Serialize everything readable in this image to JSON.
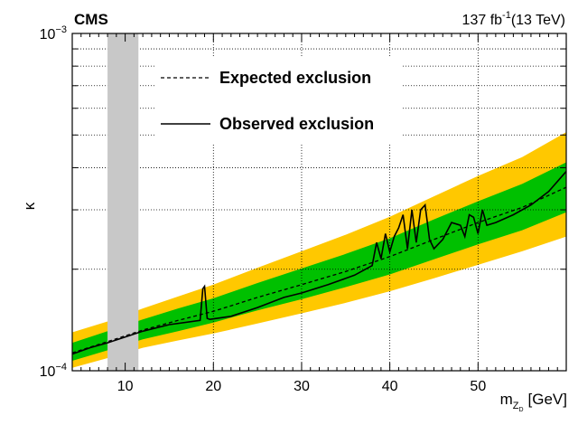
{
  "chart_data": {
    "type": "line",
    "title_left": "CMS",
    "title_right": "137 fb",
    "title_right_sup": "-1",
    "title_right_rest": "(13 TeV)",
    "xlabel": "m",
    "xlabel_sub": "Z",
    "xlabel_subsub": "D",
    "xlabel_unit": "[GeV]",
    "ylabel": "κ",
    "xlim": [
      4,
      60
    ],
    "ylim": [
      0.0001,
      0.001
    ],
    "yscale": "log",
    "grid": true,
    "legend_placement": "top-left",
    "x_ticks": [
      {
        "value": 10,
        "label": "10"
      },
      {
        "value": 20,
        "label": "20"
      },
      {
        "value": 30,
        "label": "30"
      },
      {
        "value": 40,
        "label": "40"
      },
      {
        "value": 50,
        "label": "50"
      }
    ],
    "y_ticks": [
      {
        "value": 0.0001,
        "base": "10",
        "exp": "−4"
      },
      {
        "value": 0.001,
        "base": "10",
        "exp": "−3"
      }
    ],
    "excluded_band": {
      "x": [
        8,
        11.5
      ],
      "color": "#c8c8c8"
    },
    "colors": {
      "band_2sigma": "#ffc800",
      "band_1sigma": "#00c000",
      "line": "#000000"
    },
    "series": [
      {
        "name": "Expected exclusion",
        "style": "dashed",
        "x": [
          4,
          8,
          12,
          16,
          20,
          25,
          30,
          35,
          40,
          45,
          50,
          55,
          60
        ],
        "y": [
          0.000113,
          0.000122,
          0.000132,
          0.000141,
          0.00015,
          0.000165,
          0.00018,
          0.000197,
          0.000218,
          0.000245,
          0.000275,
          0.000305,
          0.00035
        ]
      },
      {
        "name": "Observed exclusion",
        "style": "solid",
        "x": [
          4,
          6,
          8,
          12,
          15,
          18.5,
          18.8,
          19.0,
          19.3,
          19.6,
          22,
          25,
          28,
          30,
          33,
          36,
          38,
          38.5,
          39,
          39.5,
          40,
          40.5,
          41,
          41.5,
          42,
          42.5,
          43,
          43.5,
          44,
          44.5,
          45,
          46,
          47,
          48,
          48.5,
          49,
          49.5,
          50,
          50.5,
          51,
          52,
          54,
          56,
          58,
          60
        ],
        "y": [
          0.000112,
          0.000117,
          0.000121,
          0.000131,
          0.000137,
          0.000141,
          0.000175,
          0.000178,
          0.000143,
          0.000142,
          0.000145,
          0.000154,
          0.000165,
          0.00017,
          0.00018,
          0.000192,
          0.000205,
          0.00024,
          0.000215,
          0.000255,
          0.000225,
          0.00025,
          0.000265,
          0.00029,
          0.00023,
          0.0003,
          0.00024,
          0.0003,
          0.00031,
          0.000245,
          0.00023,
          0.000245,
          0.000275,
          0.00027,
          0.00025,
          0.00029,
          0.000285,
          0.000255,
          0.0003,
          0.00027,
          0.000275,
          0.00029,
          0.00031,
          0.00034,
          0.00039
        ]
      }
    ],
    "bands": {
      "x": [
        4,
        8,
        12,
        16,
        20,
        25,
        30,
        35,
        40,
        45,
        50,
        55,
        60
      ],
      "sigma1_lo": [
        0.000107,
        0.000115,
        0.000124,
        0.000131,
        0.000139,
        0.000151,
        0.000163,
        0.000177,
        0.000193,
        0.000214,
        0.000237,
        0.000261,
        0.000295
      ],
      "sigma1_hi": [
        0.000121,
        0.000131,
        0.000142,
        0.000153,
        0.000164,
        0.000182,
        0.000201,
        0.000222,
        0.000247,
        0.000281,
        0.000318,
        0.000358,
        0.000415
      ],
      "sigma2_lo": [
        0.000102,
        0.000109,
        0.000117,
        0.000123,
        0.000129,
        0.000138,
        0.000148,
        0.000159,
        0.000172,
        0.000188,
        0.000206,
        0.000226,
        0.00025
      ],
      "sigma2_hi": [
        0.00013,
        0.00014,
        0.000153,
        0.000166,
        0.00018,
        0.000202,
        0.000226,
        0.000253,
        0.000286,
        0.000329,
        0.000378,
        0.00043,
        0.00051
      ]
    }
  }
}
